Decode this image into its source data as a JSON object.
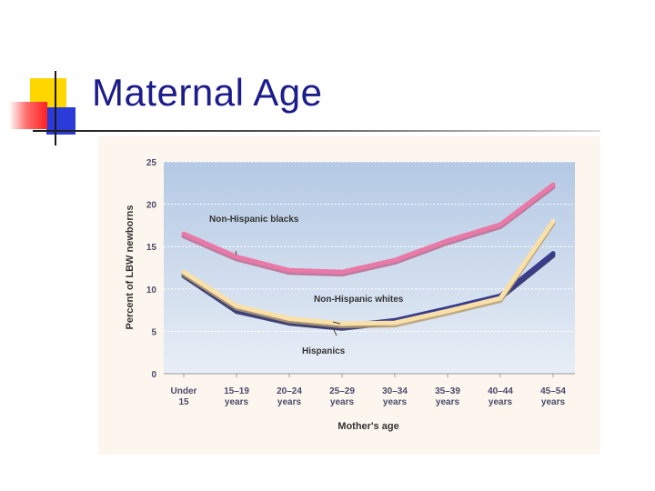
{
  "slide": {
    "title": "Maternal Age"
  },
  "chart_data": {
    "type": "line",
    "xlabel": "Mother's age",
    "ylabel": "Percent of LBW newborns",
    "ylim": [
      0,
      25
    ],
    "yticks": [
      0,
      5,
      10,
      15,
      20,
      25
    ],
    "grid": true,
    "categories": [
      [
        "Under",
        "15"
      ],
      [
        "15–19",
        "years"
      ],
      [
        "20–24",
        "years"
      ],
      [
        "25–29",
        "years"
      ],
      [
        "30–34",
        "years"
      ],
      [
        "35–39",
        "years"
      ],
      [
        "40–44",
        "years"
      ],
      [
        "45–54",
        "years"
      ]
    ],
    "series": [
      {
        "name": "Non-Hispanic blacks",
        "values": [
          16.5,
          13.8,
          12.2,
          12.0,
          13.4,
          15.7,
          17.6,
          22.3
        ],
        "color": "#e97aa8",
        "shadow": "#b86a90"
      },
      {
        "name": "Hispanics",
        "values": [
          11.8,
          7.6,
          6.2,
          5.6,
          6.3,
          7.7,
          9.2,
          14.2
        ],
        "color": "#3a3c8c",
        "shadow": "#23245c"
      },
      {
        "name": "Non-Hispanic whites",
        "values": [
          12.0,
          8.0,
          6.5,
          5.9,
          6.0,
          7.4,
          8.9,
          18.0
        ],
        "color": "#f8e0a8",
        "shadow": "#b79e70"
      }
    ],
    "annotations": [
      {
        "text": "Non-Hispanic blacks",
        "series": 0
      },
      {
        "text": "Non-Hispanic whites",
        "series": 2
      },
      {
        "text": "Hispanics",
        "series": 1
      }
    ]
  }
}
